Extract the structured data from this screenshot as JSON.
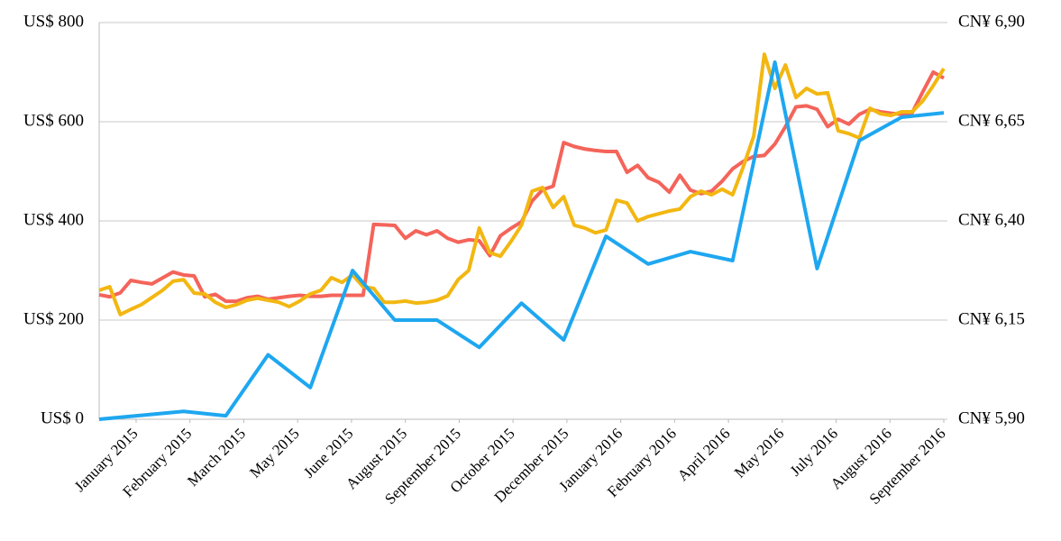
{
  "chart_data": {
    "type": "line",
    "x": [
      0,
      1,
      2,
      3,
      4,
      5,
      6,
      7,
      8,
      9,
      10,
      11,
      12,
      13,
      14,
      15,
      16,
      17,
      18,
      19,
      20,
      21,
      22,
      23,
      24,
      25,
      26,
      27,
      28,
      29,
      30,
      31,
      32,
      33,
      34,
      35,
      36,
      37,
      38,
      39,
      40,
      41,
      42,
      43,
      44,
      45,
      46,
      47,
      48,
      49,
      50,
      51,
      52,
      53,
      54,
      55,
      56,
      57,
      58,
      59,
      60,
      61,
      62,
      63,
      64,
      65,
      66,
      67,
      68,
      69,
      70,
      71,
      72,
      73,
      74,
      75,
      76,
      77,
      78,
      79,
      80
    ],
    "xlim": [
      0,
      80
    ],
    "xticks": [
      {
        "value": 3.5,
        "label": "January 2015"
      },
      {
        "value": 8.6,
        "label": "February 2015"
      },
      {
        "value": 13.7,
        "label": "March 2015"
      },
      {
        "value": 18.8,
        "label": "May 2015"
      },
      {
        "value": 23.9,
        "label": "June 2015"
      },
      {
        "value": 29,
        "label": "August 2015"
      },
      {
        "value": 34.1,
        "label": "September 2015"
      },
      {
        "value": 39.2,
        "label": "October 2015"
      },
      {
        "value": 44.3,
        "label": "December 2015"
      },
      {
        "value": 49.4,
        "label": "January 2016"
      },
      {
        "value": 54.5,
        "label": "February 2016"
      },
      {
        "value": 59.6,
        "label": "April 2016"
      },
      {
        "value": 64.7,
        "label": "May 2016"
      },
      {
        "value": 69.8,
        "label": "July 2016"
      },
      {
        "value": 74.9,
        "label": "August 2016"
      },
      {
        "value": 80,
        "label": "September 2016"
      }
    ],
    "ylim": [
      0,
      800
    ],
    "yticks": [
      {
        "value": 0,
        "label": "US$ 0"
      },
      {
        "value": 200,
        "label": "US$ 200"
      },
      {
        "value": 400,
        "label": "US$ 400"
      },
      {
        "value": 600,
        "label": "US$ 600"
      },
      {
        "value": 800,
        "label": "US$ 800"
      }
    ],
    "y2lim": [
      5.9,
      6.9
    ],
    "y2ticks": [
      {
        "value": 5.9,
        "label": "CN¥ 5,90"
      },
      {
        "value": 6.15,
        "label": "CN¥ 6,15"
      },
      {
        "value": 6.4,
        "label": "CN¥ 6,40"
      },
      {
        "value": 6.65,
        "label": "CN¥ 6,65"
      },
      {
        "value": 6.9,
        "label": "CN¥ 6,90"
      }
    ],
    "grid": true,
    "series": [
      {
        "color": "#f4645a",
        "values": [
          251,
          247,
          255,
          280,
          276,
          273,
          285,
          297,
          291,
          289,
          247,
          252,
          238,
          238,
          245,
          248,
          242,
          245,
          248,
          250,
          248,
          248,
          250,
          250,
          250,
          250,
          393,
          392,
          391,
          365,
          380,
          372,
          380,
          365,
          357,
          362,
          360,
          330,
          370,
          385,
          398,
          440,
          463,
          470,
          558,
          550,
          545,
          542,
          540,
          540,
          498,
          512,
          487,
          478,
          458,
          492,
          462,
          455,
          460,
          480,
          505,
          520,
          530,
          532,
          555,
          590,
          630,
          632,
          625,
          590,
          605,
          595,
          615,
          625,
          620,
          617,
          615,
          618,
          660,
          700,
          688
        ]
      },
      {
        "color": "#f2b711",
        "axis": "y2",
        "values": [
          6.225,
          6.234,
          6.164,
          6.177,
          6.189,
          6.207,
          6.225,
          6.248,
          6.252,
          6.218,
          6.216,
          6.195,
          6.182,
          6.189,
          6.2,
          6.205,
          6.2,
          6.195,
          6.184,
          6.198,
          6.216,
          6.225,
          6.257,
          6.245,
          6.264,
          6.234,
          6.23,
          6.195,
          6.195,
          6.198,
          6.193,
          6.195,
          6.2,
          6.211,
          6.252,
          6.275,
          6.382,
          6.32,
          6.311,
          6.348,
          6.389,
          6.475,
          6.484,
          6.434,
          6.461,
          6.389,
          6.382,
          6.37,
          6.377,
          6.452,
          6.445,
          6.4,
          6.411,
          6.418,
          6.425,
          6.43,
          6.461,
          6.475,
          6.466,
          6.48,
          6.466,
          6.536,
          6.614,
          6.82,
          6.734,
          6.793,
          6.711,
          6.734,
          6.72,
          6.723,
          6.627,
          6.62,
          6.609,
          6.684,
          6.67,
          6.666,
          6.675,
          6.675,
          6.702,
          6.741,
          6.784
        ]
      },
      {
        "color": "#1ea7f0",
        "x": [
          0,
          4,
          8,
          12,
          16,
          20,
          24,
          28,
          32,
          36,
          40,
          44,
          48,
          52,
          56,
          60,
          64,
          68,
          72,
          76,
          80
        ],
        "values": [
          0,
          8,
          16,
          7,
          130,
          64,
          300,
          200,
          200,
          145,
          234,
          160,
          369,
          313,
          338,
          320,
          720,
          304,
          562,
          609,
          618
        ]
      }
    ]
  }
}
